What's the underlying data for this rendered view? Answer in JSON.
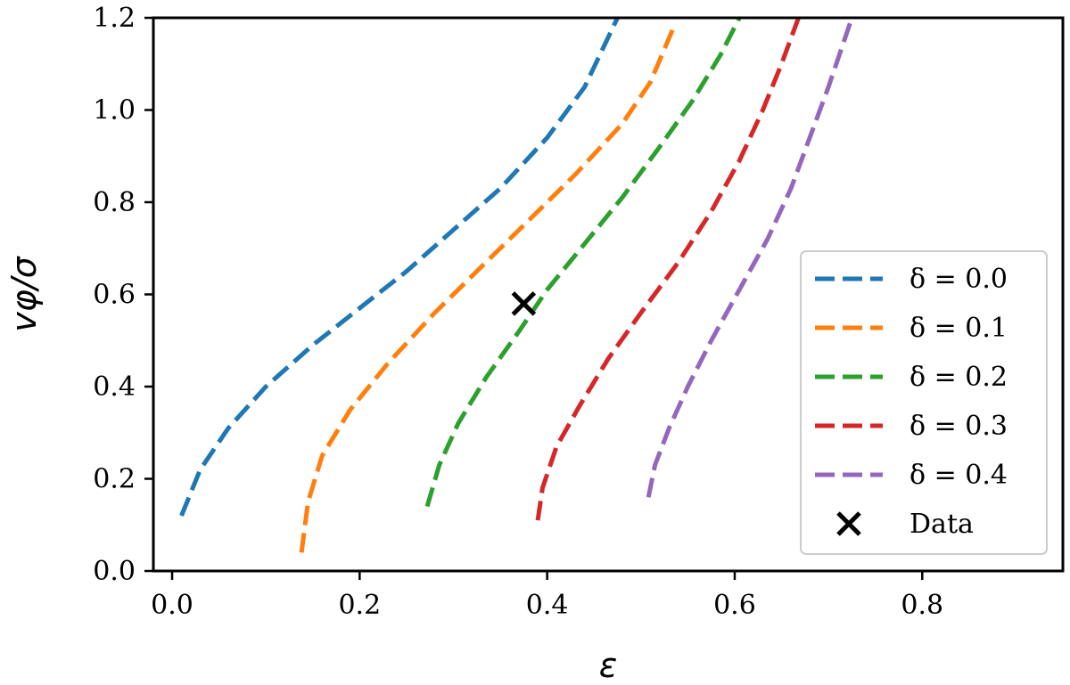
{
  "chart_data": {
    "type": "line",
    "xlabel": "ε",
    "ylabel": "vφ/σ",
    "xlim": [
      -0.02,
      0.95
    ],
    "ylim": [
      0.0,
      1.2
    ],
    "x_ticks": [
      0.0,
      0.2,
      0.4,
      0.6,
      0.8
    ],
    "x_tick_labels": [
      "0.0",
      "0.2",
      "0.4",
      "0.6",
      "0.8"
    ],
    "y_ticks": [
      0.0,
      0.2,
      0.4,
      0.6,
      0.8,
      1.0,
      1.2
    ],
    "y_tick_labels": [
      "0.0",
      "0.2",
      "0.4",
      "0.6",
      "0.8",
      "1.0",
      "1.2"
    ],
    "grid": false,
    "legend_position": "lower-right",
    "series": [
      {
        "name": "δ = 0.0",
        "color": "#1f77b4",
        "style": "dashed",
        "x": [
          0.01,
          0.03,
          0.06,
          0.1,
          0.15,
          0.2,
          0.25,
          0.3,
          0.35,
          0.4,
          0.44,
          0.475
        ],
        "y": [
          0.12,
          0.22,
          0.31,
          0.4,
          0.49,
          0.57,
          0.65,
          0.74,
          0.83,
          0.94,
          1.05,
          1.2
        ]
      },
      {
        "name": "δ = 0.1",
        "color": "#ff7f0e",
        "style": "dashed",
        "x": [
          0.138,
          0.145,
          0.16,
          0.19,
          0.23,
          0.28,
          0.33,
          0.38,
          0.43,
          0.48,
          0.51,
          0.535
        ],
        "y": [
          0.04,
          0.15,
          0.25,
          0.35,
          0.45,
          0.56,
          0.66,
          0.76,
          0.86,
          0.97,
          1.06,
          1.18
        ]
      },
      {
        "name": "δ = 0.2",
        "color": "#2ca02c",
        "style": "dashed",
        "x": [
          0.272,
          0.285,
          0.305,
          0.335,
          0.37,
          0.4,
          0.44,
          0.48,
          0.52,
          0.555,
          0.585,
          0.605
        ],
        "y": [
          0.14,
          0.23,
          0.32,
          0.42,
          0.52,
          0.61,
          0.71,
          0.81,
          0.92,
          1.02,
          1.12,
          1.2
        ]
      },
      {
        "name": "δ = 0.3",
        "color": "#d62728",
        "style": "dashed",
        "x": [
          0.39,
          0.395,
          0.41,
          0.435,
          0.465,
          0.5,
          0.54,
          0.575,
          0.605,
          0.63,
          0.65,
          0.668
        ],
        "y": [
          0.11,
          0.18,
          0.27,
          0.36,
          0.46,
          0.56,
          0.67,
          0.78,
          0.89,
          1.0,
          1.1,
          1.2
        ]
      },
      {
        "name": "δ = 0.4",
        "color": "#9467bd",
        "style": "dashed",
        "x": [
          0.508,
          0.515,
          0.53,
          0.55,
          0.575,
          0.605,
          0.635,
          0.66,
          0.68,
          0.7,
          0.715,
          0.725
        ],
        "y": [
          0.16,
          0.23,
          0.31,
          0.4,
          0.5,
          0.61,
          0.72,
          0.83,
          0.94,
          1.05,
          1.14,
          1.2
        ]
      }
    ],
    "points": [
      {
        "name": "Data",
        "marker": "x",
        "color": "#000000",
        "x": 0.375,
        "y": 0.58
      }
    ]
  }
}
